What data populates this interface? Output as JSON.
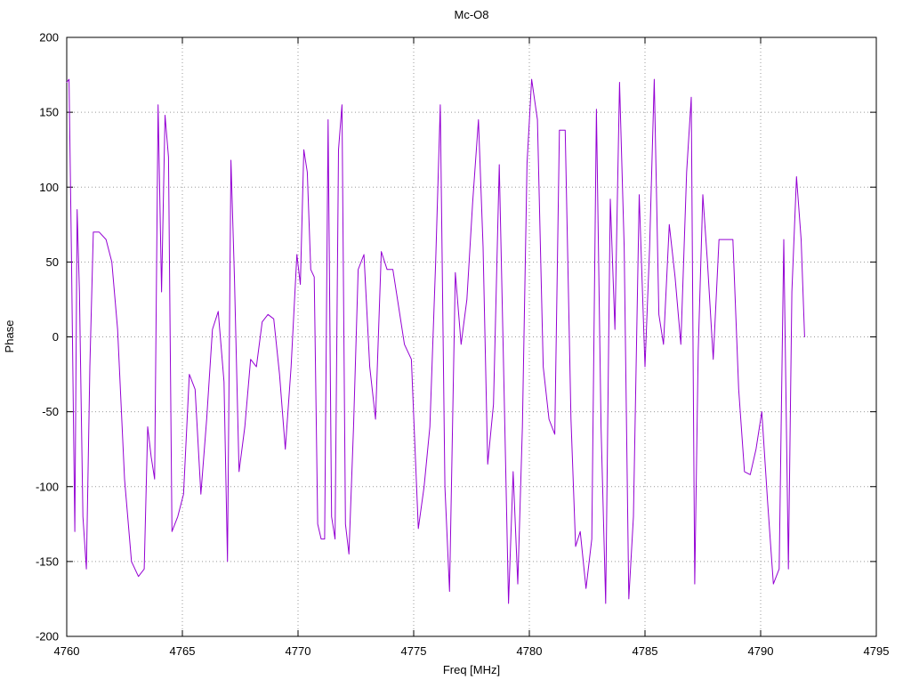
{
  "page": {
    "background": "#ffffff"
  },
  "chart_data": {
    "type": "line",
    "title": "Mc-O8",
    "xlabel": "Freq [MHz]",
    "ylabel": "Phase",
    "xlim": [
      4760,
      4795
    ],
    "ylim": [
      -200,
      200
    ],
    "xticks": [
      4760,
      4765,
      4770,
      4775,
      4780,
      4785,
      4790,
      4795
    ],
    "yticks": [
      -200,
      -150,
      -100,
      -50,
      0,
      50,
      100,
      150,
      200
    ],
    "grid": true,
    "legend": "none",
    "line_color": "#9400d3",
    "series": [
      {
        "name": "Mc-O8",
        "x": [
          4760.0,
          4760.1,
          4760.2,
          4760.35,
          4760.45,
          4760.55,
          4760.7,
          4760.85,
          4761.0,
          4761.15,
          4761.4,
          4761.7,
          4761.95,
          4762.2,
          4762.5,
          4762.8,
          4763.1,
          4763.35,
          4763.5,
          4763.65,
          4763.8,
          4763.95,
          4764.1,
          4764.25,
          4764.4,
          4764.55,
          4764.8,
          4765.05,
          4765.3,
          4765.55,
          4765.8,
          4766.05,
          4766.3,
          4766.55,
          4766.8,
          4766.95,
          4767.1,
          4767.25,
          4767.45,
          4767.7,
          4767.95,
          4768.2,
          4768.45,
          4768.7,
          4768.95,
          4769.2,
          4769.45,
          4769.7,
          4769.95,
          4770.1,
          4770.25,
          4770.4,
          4770.55,
          4770.7,
          4770.85,
          4771.0,
          4771.15,
          4771.3,
          4771.45,
          4771.6,
          4771.75,
          4771.9,
          4772.05,
          4772.2,
          4772.4,
          4772.6,
          4772.85,
          4773.1,
          4773.35,
          4773.6,
          4773.85,
          4774.1,
          4774.35,
          4774.6,
          4774.9,
          4775.2,
          4775.45,
          4775.7,
          4775.95,
          4776.15,
          4776.35,
          4776.55,
          4776.8,
          4777.05,
          4777.3,
          4777.55,
          4777.8,
          4778.0,
          4778.2,
          4778.45,
          4778.7,
          4778.9,
          4779.1,
          4779.3,
          4779.5,
          4779.7,
          4779.9,
          4780.1,
          4780.35,
          4780.6,
          4780.85,
          4781.1,
          4781.3,
          4781.55,
          4781.8,
          4782.0,
          4782.2,
          4782.45,
          4782.7,
          4782.9,
          4783.1,
          4783.3,
          4783.5,
          4783.7,
          4783.9,
          4784.1,
          4784.3,
          4784.5,
          4784.75,
          4785.0,
          4785.2,
          4785.4,
          4785.6,
          4785.8,
          4786.05,
          4786.3,
          4786.55,
          4786.8,
          4787.0,
          4787.15,
          4787.3,
          4787.5,
          4787.7,
          4787.95,
          4788.2,
          4788.5,
          4788.8,
          4789.05,
          4789.3,
          4789.55,
          4789.8,
          4790.05,
          4790.3,
          4790.55,
          4790.8,
          4791.0,
          4791.2,
          4791.35,
          4791.55,
          4791.75,
          4791.9
        ],
        "y": [
          170,
          172,
          60,
          -130,
          85,
          30,
          -120,
          -155,
          -20,
          70,
          70,
          65,
          50,
          5,
          -95,
          -150,
          -160,
          -155,
          -60,
          -80,
          -95,
          155,
          30,
          148,
          120,
          -130,
          -120,
          -105,
          -25,
          -35,
          -105,
          -55,
          5,
          17,
          -30,
          -150,
          118,
          40,
          -90,
          -60,
          -15,
          -20,
          10,
          15,
          12,
          -25,
          -75,
          -20,
          55,
          35,
          125,
          110,
          45,
          40,
          -125,
          -135,
          -135,
          145,
          -120,
          -135,
          125,
          155,
          -125,
          -145,
          -60,
          45,
          55,
          -20,
          -55,
          57,
          45,
          45,
          20,
          -5,
          -15,
          -128,
          -100,
          -60,
          50,
          155,
          -100,
          -170,
          43,
          -5,
          25,
          90,
          145,
          60,
          -85,
          -45,
          115,
          -30,
          -178,
          -90,
          -165,
          -60,
          116,
          172,
          145,
          -20,
          -55,
          -65,
          138,
          138,
          -55,
          -140,
          -130,
          -168,
          -135,
          152,
          -60,
          -178,
          92,
          5,
          170,
          60,
          -175,
          -120,
          95,
          -20,
          60,
          172,
          15,
          -5,
          75,
          40,
          -5,
          110,
          160,
          -165,
          -10,
          95,
          50,
          -15,
          65,
          65,
          65,
          -35,
          -90,
          -92,
          -75,
          -50,
          -110,
          -165,
          -155,
          65,
          -155,
          30,
          107,
          65,
          0
        ]
      }
    ]
  }
}
